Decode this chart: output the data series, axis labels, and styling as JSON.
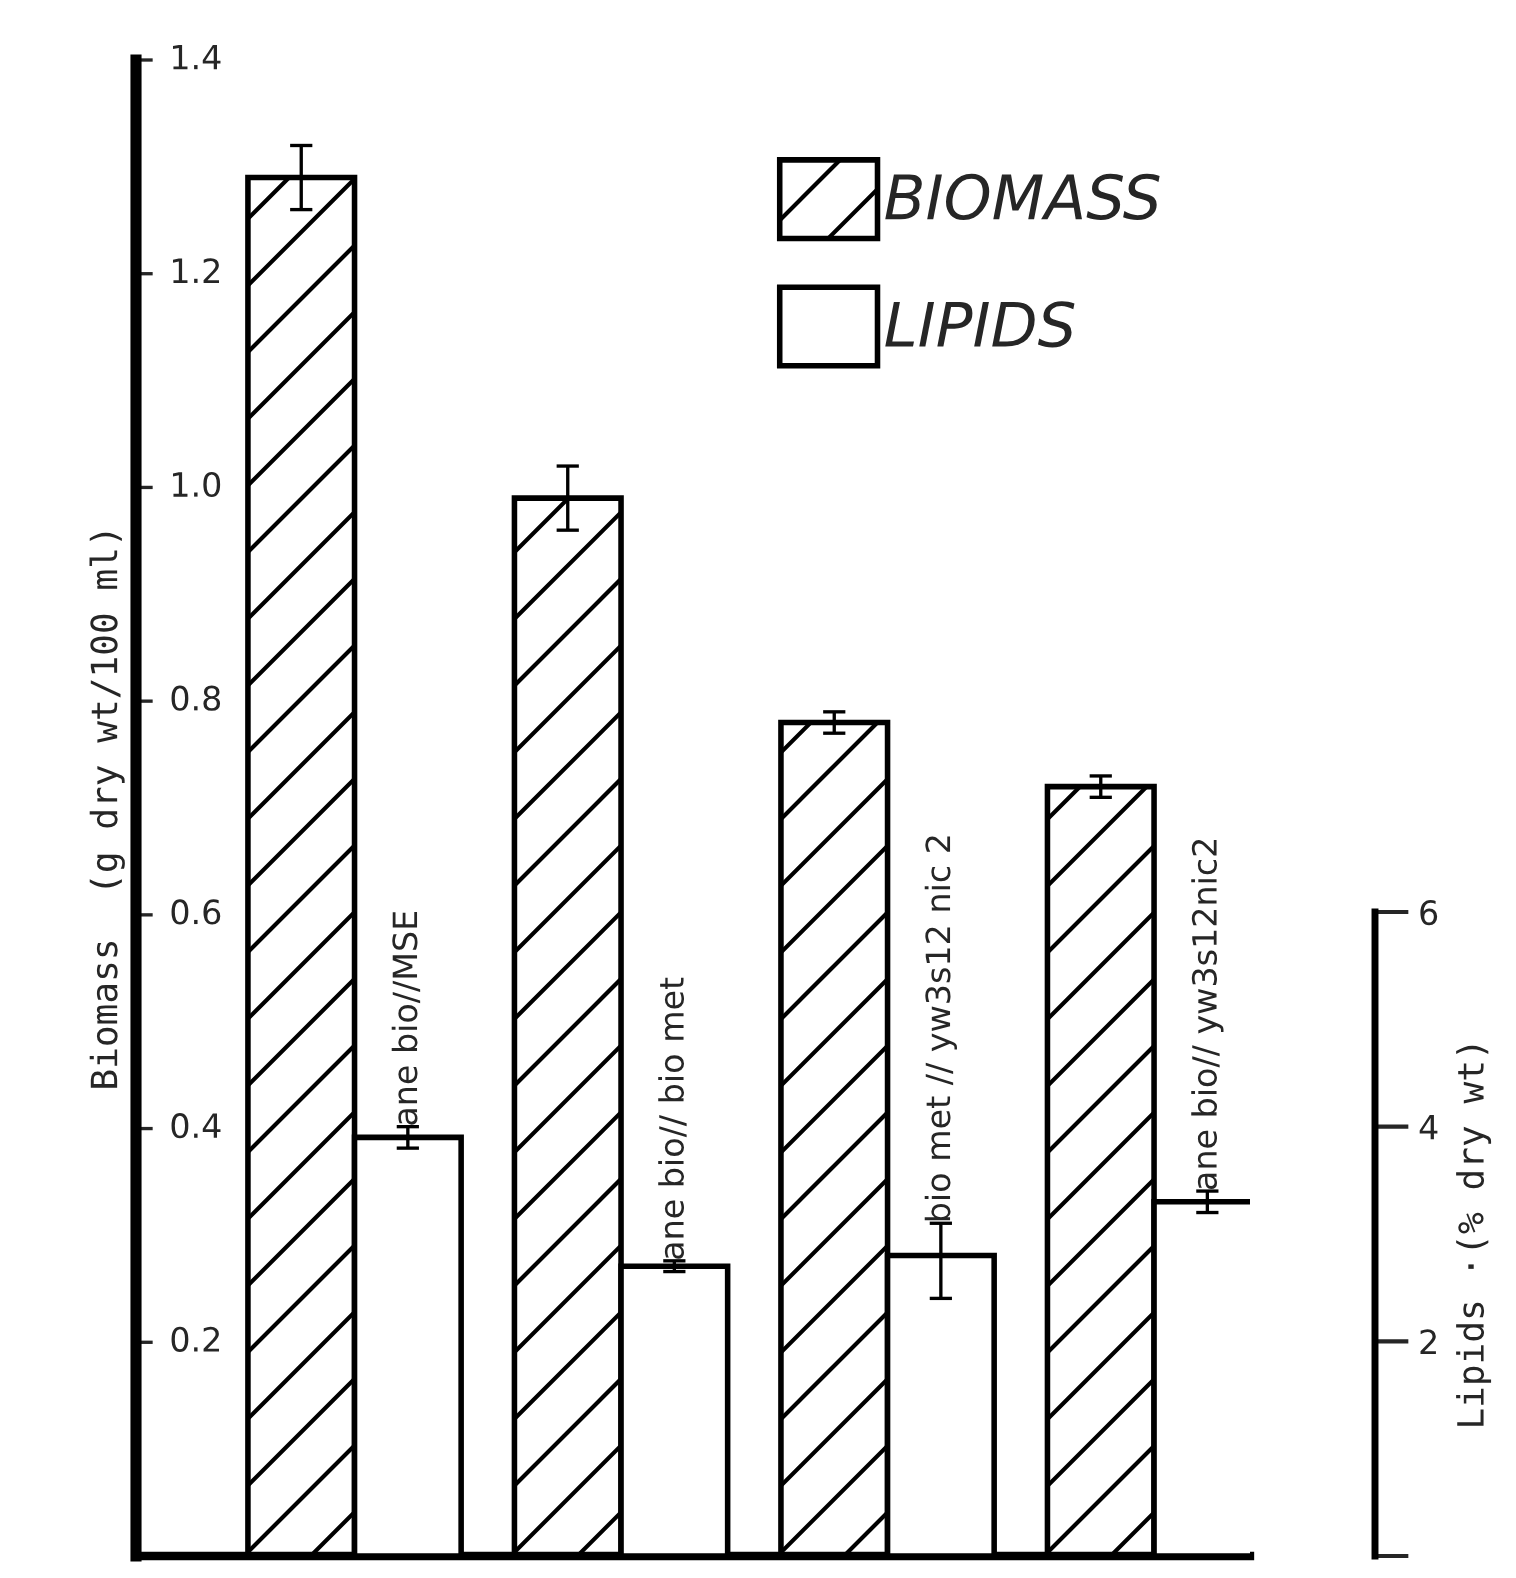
{
  "chart_data": {
    "type": "bar",
    "ylabel": "Biomass  (g dry wt/100 ml)",
    "y2label": "Lipids ·(% dry wt)",
    "categories": [
      "ane bio//MSE",
      "ane bio// bio met",
      "bio met // yw3s12 nic 2",
      "ane bio// yw3s12nic2"
    ],
    "series": [
      {
        "name": "BIOMASS",
        "color": "#000000",
        "values": [
          1.29,
          0.99,
          0.78,
          0.72
        ],
        "errors": [
          0.03,
          0.03,
          0.01,
          0.01
        ]
      },
      {
        "name": "LIPIDS",
        "color": "#000000",
        "axis": "y2",
        "values": [
          3.9,
          2.7,
          2.8,
          3.3
        ],
        "errors": [
          0.1,
          0.05,
          [
            2.4,
            3.1
          ],
          0.1
        ]
      }
    ],
    "ylim": [
      0,
      1.4
    ],
    "yticks": [
      0.2,
      0.4,
      0.6,
      0.8,
      {
        "value": 1.0,
        "label": "1.0"
      },
      1.2,
      1.4
    ],
    "y2lim": [
      0,
      6
    ],
    "y2ticks": [
      {
        "value": 0,
        "label": null
      },
      2,
      4,
      6
    ],
    "legend": "top right",
    "grid": false
  }
}
